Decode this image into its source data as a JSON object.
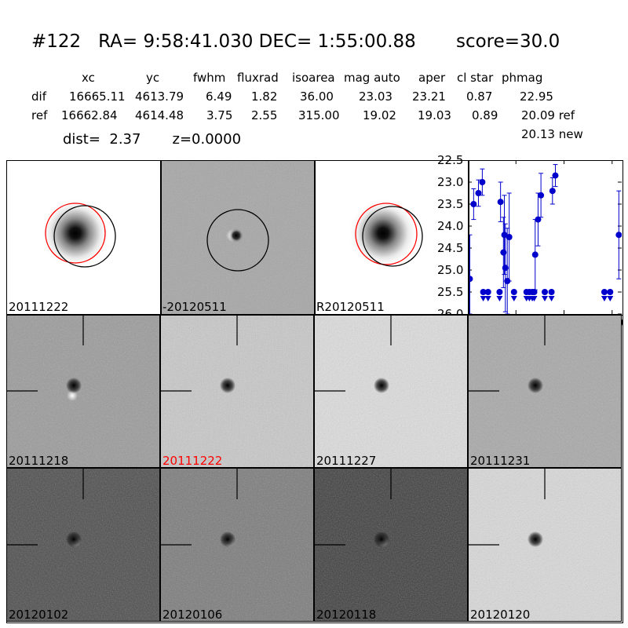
{
  "header": {
    "title": "#122   RA= 9:58:41.030 DEC= 1:55:00.88       score=30.0",
    "columns": [
      "xc",
      "yc",
      "fwhm",
      "fluxrad",
      "isoarea",
      "mag auto",
      "aper",
      "cl star",
      "phmag"
    ],
    "rows": [
      {
        "label": "dif",
        "values": [
          "16665.11",
          "4613.79",
          "6.49",
          "1.82",
          "36.00",
          "23.03",
          "23.21",
          "0.87",
          "22.95"
        ]
      },
      {
        "label": "ref",
        "values": [
          "16662.84",
          "4614.48",
          "3.75",
          "2.55",
          "315.00",
          "19.02",
          "19.03",
          "0.89",
          "20.09 ref"
        ]
      }
    ],
    "new_mag": "20.13 new",
    "dist_text": "dist=  2.37       z=0.0000"
  },
  "top_panels": [
    {
      "label": "20111222",
      "label_color": "#000000"
    },
    {
      "label": "-20120511",
      "label_color": "#000000"
    },
    {
      "label": "R20120511",
      "label_color": "#000000"
    }
  ],
  "cutouts": [
    {
      "label": "20111218",
      "label_color": "#000000",
      "bg": "#9a9a9a"
    },
    {
      "label": "20111222",
      "label_color": "#ff0000",
      "bg": "#c9c9c9"
    },
    {
      "label": "20111227",
      "label_color": "#000000",
      "bg": "#dedede"
    },
    {
      "label": "20111231",
      "label_color": "#000000",
      "bg": "#a8a8a8"
    },
    {
      "label": "20120102",
      "label_color": "#000000",
      "bg": "#4a4a4a"
    },
    {
      "label": "20120106",
      "label_color": "#000000",
      "bg": "#7a7a7a"
    },
    {
      "label": "20120118",
      "label_color": "#000000",
      "bg": "#3c3c3c"
    },
    {
      "label": "20120120",
      "label_color": "#000000",
      "bg": "#dadada"
    }
  ],
  "chart_data": {
    "type": "scatter",
    "xlim": [
      0,
      160
    ],
    "ylim": [
      26.0,
      22.5
    ],
    "y_inverted": true,
    "xticks": [
      0,
      50,
      100,
      150
    ],
    "yticks": [
      "22.5",
      "23.0",
      "23.5",
      "24.0",
      "24.5",
      "25.0",
      "25.5",
      "26.0"
    ],
    "color": "#0000cc",
    "detections": [
      {
        "x": 2,
        "y": 25.2,
        "err": 1.0
      },
      {
        "x": 6,
        "y": 23.5,
        "err": 0.35
      },
      {
        "x": 11,
        "y": 23.25,
        "err": 0.3
      },
      {
        "x": 15,
        "y": 23.0,
        "err": 0.3
      },
      {
        "x": 34,
        "y": 23.45,
        "err": 0.45
      },
      {
        "x": 37,
        "y": 24.6,
        "err": 0.8
      },
      {
        "x": 38,
        "y": 24.2,
        "err": 0.9
      },
      {
        "x": 39,
        "y": 24.95,
        "err": 1.0
      },
      {
        "x": 41,
        "y": 25.25,
        "err": 1.2
      },
      {
        "x": 43,
        "y": 24.25,
        "err": 1.0
      },
      {
        "x": 70,
        "y": 24.65,
        "err": 0.8
      },
      {
        "x": 73,
        "y": 23.85,
        "err": 0.6
      },
      {
        "x": 76,
        "y": 23.3,
        "err": 0.5
      },
      {
        "x": 88,
        "y": 23.2,
        "err": 0.3
      },
      {
        "x": 91,
        "y": 22.85,
        "err": 0.25
      },
      {
        "x": 157,
        "y": 24.2,
        "err": 1.0
      }
    ],
    "upper_limits": [
      {
        "x": 16,
        "y": 25.5
      },
      {
        "x": 21,
        "y": 25.5
      },
      {
        "x": 33,
        "y": 25.5
      },
      {
        "x": 48,
        "y": 25.5
      },
      {
        "x": 61,
        "y": 25.5
      },
      {
        "x": 64,
        "y": 25.5
      },
      {
        "x": 67,
        "y": 25.5
      },
      {
        "x": 69,
        "y": 25.5
      },
      {
        "x": 80,
        "y": 25.5
      },
      {
        "x": 87,
        "y": 25.5
      },
      {
        "x": 142,
        "y": 25.5
      },
      {
        "x": 148,
        "y": 25.5
      }
    ]
  }
}
